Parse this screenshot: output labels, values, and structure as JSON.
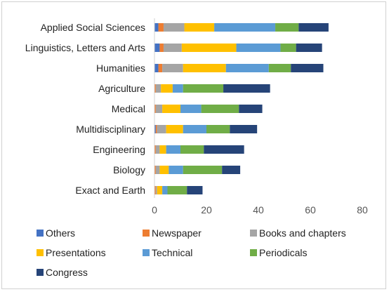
{
  "chart_data": {
    "type": "bar",
    "orientation": "horizontal",
    "stacked": true,
    "categories": [
      "Applied Social Sciences",
      "Linguistics, Letters and Arts",
      "Humanities",
      "Agriculture",
      "Medical",
      "Multidisciplinary",
      "Engineering",
      "Biology",
      "Exact and Earth"
    ],
    "series": [
      {
        "name": "Others",
        "color": "#4472c4",
        "values": [
          1.5,
          2,
          1.5,
          0,
          0,
          0.5,
          0,
          0,
          0
        ]
      },
      {
        "name": "Newspaper",
        "color": "#ed7d31",
        "values": [
          2,
          1.5,
          1.5,
          0.5,
          0.5,
          0.5,
          0.5,
          0.5,
          0.5
        ]
      },
      {
        "name": "Books and chapters",
        "color": "#a5a5a5",
        "values": [
          8,
          7,
          8,
          2,
          2.5,
          3.5,
          1.5,
          1.5,
          0.5
        ]
      },
      {
        "name": "Presentations",
        "color": "#ffc000",
        "values": [
          11.5,
          21,
          16.5,
          4.5,
          7,
          6.5,
          2.5,
          3.5,
          2
        ]
      },
      {
        "name": "Technical",
        "color": "#5b9bd5",
        "values": [
          23.5,
          17,
          16.5,
          4,
          8,
          9,
          5.5,
          5.5,
          2
        ]
      },
      {
        "name": "Periodicals",
        "color": "#70ad47",
        "values": [
          9,
          6,
          8.5,
          15.5,
          14.5,
          9,
          9,
          15,
          7.5
        ]
      },
      {
        "name": "Congress",
        "color": "#264478",
        "values": [
          11.5,
          10,
          12.5,
          18,
          9,
          10.5,
          15.5,
          7,
          6
        ]
      }
    ],
    "xlim": [
      0,
      80
    ],
    "xticks": [
      0,
      20,
      40,
      60,
      80
    ],
    "grid": false,
    "legend_position": "bottom"
  }
}
